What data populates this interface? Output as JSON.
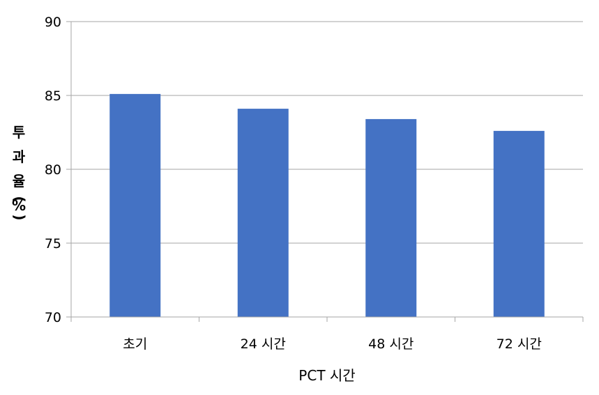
{
  "chart_data": {
    "type": "bar",
    "title": "",
    "xlabel": "PCT  시간",
    "ylabel": "투과율(%)",
    "ylabel_chars": [
      "투",
      "과",
      "율",
      "(",
      "%",
      ")"
    ],
    "categories": [
      "초기",
      "24 시간",
      "48 시간",
      "72 시간"
    ],
    "values": [
      85.1,
      84.1,
      83.4,
      82.6
    ],
    "ylim": [
      70,
      90
    ],
    "yticks": [
      70,
      75,
      80,
      85,
      90
    ],
    "grid": true,
    "legend": "none",
    "bar_color": "#4472c4",
    "grid_color": "#a6a6a6"
  }
}
